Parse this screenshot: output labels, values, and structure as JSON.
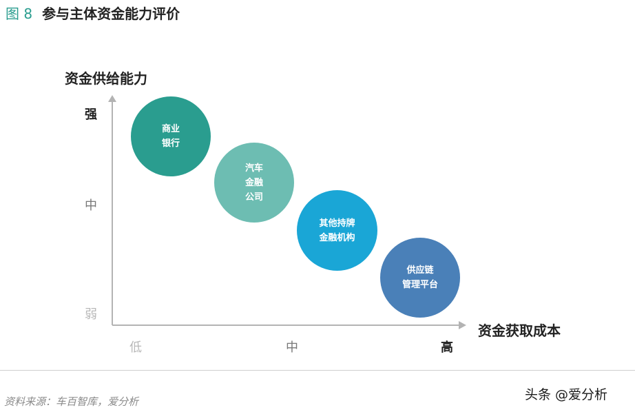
{
  "figure": {
    "number": "图 8",
    "title": "参与主体资金能力评价"
  },
  "y_axis": {
    "title": "资金供给能力",
    "ticks": [
      "强",
      "中",
      "弱"
    ]
  },
  "x_axis": {
    "title": "资金获取成本",
    "ticks": [
      "低",
      "中",
      "高"
    ]
  },
  "bubbles": [
    {
      "label": "商业\n银行",
      "color": "#2a9d8f"
    },
    {
      "label": "汽车\n金融\n公司",
      "color": "#6dbdb2"
    },
    {
      "label": "其他持牌\n金融机构",
      "color": "#1aa6d6"
    },
    {
      "label": "供应链\n管理平台",
      "color": "#4a80b8"
    }
  ],
  "axis_color": "#b3b3b3",
  "source": "资料来源：车百智库，爱分析",
  "watermark": "头条 @爱分析"
}
